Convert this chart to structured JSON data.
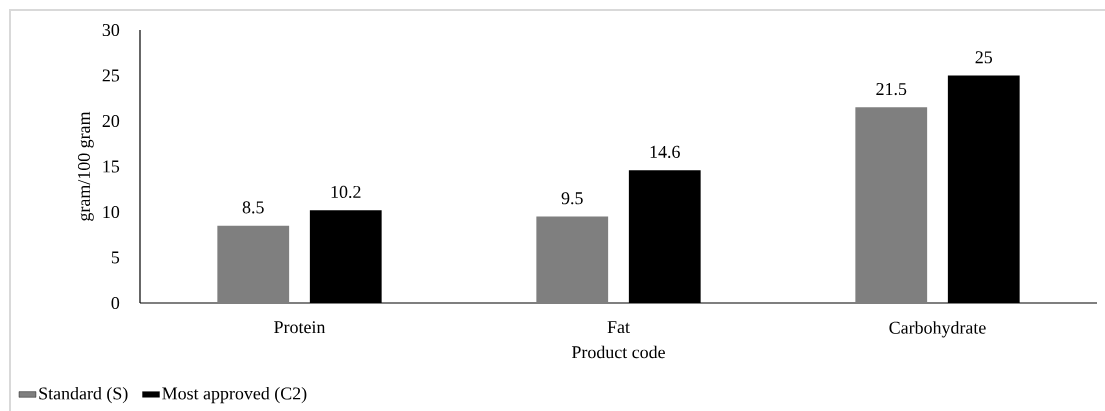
{
  "chart_data": {
    "type": "bar",
    "xlabel": "Product code",
    "ylabel": "gram/100 gram",
    "categories": [
      "Protein",
      "Fat",
      "Carbohydrate"
    ],
    "series": [
      {
        "name": "Standard (S)",
        "color": "#7f7f7f",
        "values": [
          8.5,
          9.5,
          21.5
        ]
      },
      {
        "name": "Most approved (C2)",
        "color": "#000000",
        "values": [
          10.2,
          14.6,
          25
        ]
      }
    ],
    "ylim": [
      0,
      30
    ],
    "yticks": [
      0,
      5,
      10,
      15,
      20,
      25,
      30
    ],
    "data_labels": true,
    "grid": false,
    "legend": "bottom left"
  }
}
